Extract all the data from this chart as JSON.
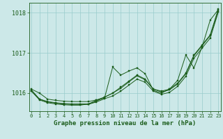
{
  "background_color": "#cce8e8",
  "plot_bg_color": "#cce8e8",
  "grid_color": "#99cccc",
  "line_color": "#1a5c1a",
  "xlabel": "Graphe pression niveau de la mer (hPa)",
  "ylim": [
    1015.55,
    1018.25
  ],
  "xlim": [
    -0.3,
    23.3
  ],
  "yticks": [
    1016,
    1017,
    1018
  ],
  "xticks": [
    0,
    1,
    2,
    3,
    4,
    5,
    6,
    7,
    8,
    9,
    10,
    11,
    12,
    13,
    14,
    15,
    16,
    17,
    18,
    19,
    20,
    21,
    22,
    23
  ],
  "series": [
    [
      1016.1,
      1016.0,
      1015.85,
      1015.82,
      1015.8,
      1015.79,
      1015.79,
      1015.79,
      1015.83,
      1015.9,
      1016.0,
      1016.15,
      1016.3,
      1016.45,
      1016.35,
      1016.1,
      1016.05,
      1016.1,
      1016.25,
      1016.5,
      1016.95,
      1017.2,
      1017.45,
      1018.1
    ],
    [
      1016.05,
      1015.85,
      1015.78,
      1015.75,
      1015.73,
      1015.72,
      1015.72,
      1015.72,
      1015.78,
      1015.86,
      1015.93,
      1016.05,
      1016.2,
      1016.35,
      1016.27,
      1016.05,
      1015.97,
      1016.02,
      1016.17,
      1016.42,
      1016.87,
      1017.12,
      1017.37,
      1018.02
    ],
    [
      1016.05,
      1015.83,
      1015.76,
      1015.73,
      1015.71,
      1015.7,
      1015.7,
      1015.73,
      1015.82,
      1015.88,
      1016.65,
      1016.45,
      1016.55,
      1016.63,
      1016.48,
      1016.07,
      1016.0,
      1016.1,
      1016.32,
      1016.95,
      1016.63,
      1017.15,
      1017.82,
      1018.08
    ],
    [
      1016.08,
      1015.85,
      1015.79,
      1015.76,
      1015.74,
      1015.73,
      1015.73,
      1015.73,
      1015.8,
      1015.9,
      1016.0,
      1016.12,
      1016.28,
      1016.43,
      1016.33,
      1016.1,
      1016.03,
      1016.08,
      1016.23,
      1016.48,
      1016.93,
      1017.18,
      1017.43,
      1018.05
    ]
  ]
}
